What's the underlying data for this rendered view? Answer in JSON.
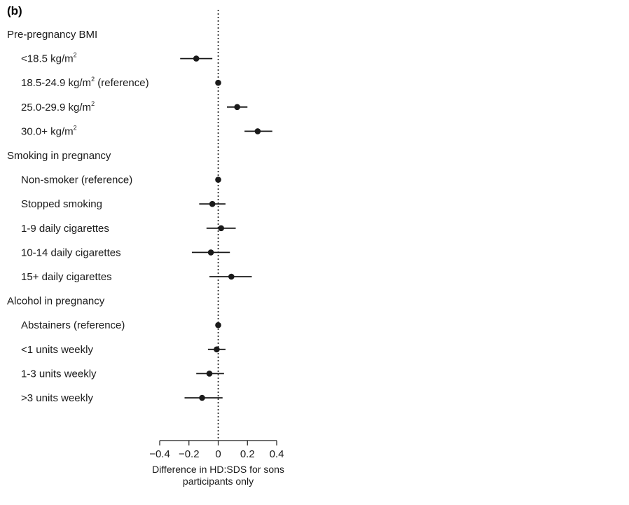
{
  "chart_data": [
    {
      "type": "forest",
      "panel_label": "(b)",
      "xlim": [
        -0.4,
        0.4
      ],
      "xticks": [
        "−0.4",
        "−0.2",
        "0",
        "0.2",
        "0.4"
      ],
      "xlabel_lines": [
        "Difference in HD:SDS for sons",
        "participants only"
      ],
      "reference_line": 0,
      "rows": [
        {
          "label": "Pre-pregnancy BMI",
          "header": true
        },
        {
          "label": "<18.5 kg/m",
          "sup": "2",
          "est": -0.15,
          "lo": -0.26,
          "hi": -0.04
        },
        {
          "label": "18.5-24.9 kg/m",
          "sup": "2",
          "after": " (reference)",
          "est": 0.0,
          "lo": 0.0,
          "hi": 0.0
        },
        {
          "label": "25.0-29.9 kg/m",
          "sup": "2",
          "est": 0.13,
          "lo": 0.06,
          "hi": 0.2
        },
        {
          "label": "30.0+ kg/m",
          "sup": "2",
          "est": 0.27,
          "lo": 0.18,
          "hi": 0.37
        },
        {
          "label": "Smoking in pregnancy",
          "header": true
        },
        {
          "label": "Non-smoker (reference)",
          "est": 0.0,
          "lo": 0.0,
          "hi": 0.0
        },
        {
          "label": "Stopped smoking",
          "est": -0.04,
          "lo": -0.13,
          "hi": 0.05
        },
        {
          "label": "1-9 daily cigarettes",
          "est": 0.02,
          "lo": -0.08,
          "hi": 0.12
        },
        {
          "label": "10-14 daily cigarettes",
          "est": -0.05,
          "lo": -0.18,
          "hi": 0.08
        },
        {
          "label": "15+ daily cigarettes",
          "est": 0.09,
          "lo": -0.06,
          "hi": 0.23
        },
        {
          "label": "Alcohol in pregnancy",
          "header": true
        },
        {
          "label": "Abstainers (reference)",
          "est": 0.0,
          "lo": 0.0,
          "hi": 0.0
        },
        {
          "label": "<1 units weekly",
          "est": -0.01,
          "lo": -0.07,
          "hi": 0.05
        },
        {
          "label": "1-3 units weekly",
          "est": -0.06,
          "lo": -0.15,
          "hi": 0.04
        },
        {
          "label": ">3 units weekly",
          "est": -0.11,
          "lo": -0.23,
          "hi": 0.03
        }
      ]
    }
  ]
}
